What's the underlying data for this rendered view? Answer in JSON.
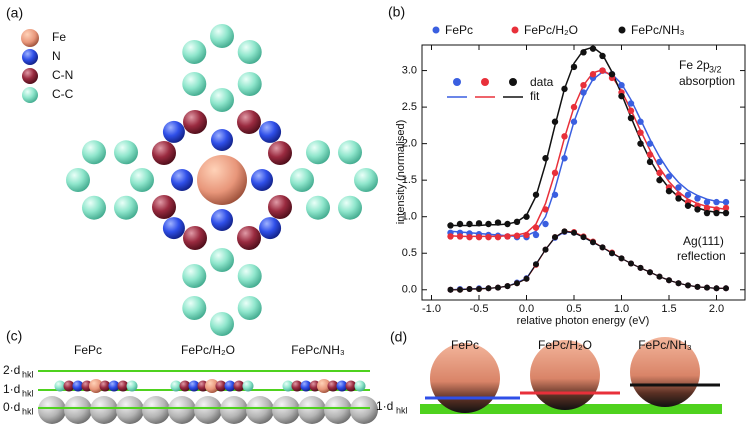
{
  "panel_a": {
    "label": "(a)",
    "legend": [
      "Fe",
      "N",
      "C-N",
      "C-C"
    ]
  },
  "chart_data": {
    "type": "scatter",
    "panel_label": "(b)",
    "xlabel": "relative photon energy (eV)",
    "ylabel": "intensity (normalised)",
    "xlim": [
      -1.1,
      2.3
    ],
    "ylim": [
      -0.14,
      3.35
    ],
    "xticks": [
      {
        "value": -1,
        "label": "-1.0"
      },
      {
        "value": -0.5,
        "label": "-0.5"
      },
      {
        "value": 0,
        "label": "0.0"
      },
      {
        "value": 0.5,
        "label": "0.5"
      },
      {
        "value": 1,
        "label": "1.0"
      },
      {
        "value": 1.5,
        "label": "1.5"
      },
      {
        "value": 2,
        "label": "2.0"
      }
    ],
    "yticks": [
      {
        "value": 0,
        "label": "0.0"
      },
      0.5,
      {
        "value": 1,
        "label": "1.0"
      },
      1.5,
      {
        "value": 2,
        "label": "2.0"
      },
      2.5,
      {
        "value": 3,
        "label": "3.0"
      }
    ],
    "inset_labels": [
      "data",
      "fit"
    ],
    "annotations": [
      "Fe 2p",
      "3/2",
      "absorption",
      "Ag(111)",
      "reflection"
    ],
    "x": [
      -0.8,
      -0.7,
      -0.6,
      -0.5,
      -0.4,
      -0.3,
      -0.2,
      -0.1,
      0.0,
      0.1,
      0.2,
      0.3,
      0.4,
      0.5,
      0.6,
      0.7,
      0.8,
      0.9,
      1.0,
      1.1,
      1.2,
      1.3,
      1.4,
      1.5,
      1.6,
      1.7,
      1.8,
      1.9,
      2.0,
      2.1
    ],
    "series": [
      {
        "name": "FePc",
        "color": "#3a5fe0",
        "values": [
          0.78,
          0.78,
          0.77,
          0.76,
          0.75,
          0.74,
          0.73,
          0.72,
          0.72,
          0.75,
          0.9,
          1.3,
          1.8,
          2.3,
          2.7,
          2.9,
          3.0,
          2.95,
          2.8,
          2.55,
          2.3,
          2.0,
          1.75,
          1.55,
          1.4,
          1.3,
          1.25,
          1.2,
          1.2,
          1.2
        ],
        "fit": [
          0.8,
          0.79,
          0.78,
          0.77,
          0.76,
          0.75,
          0.74,
          0.73,
          0.74,
          0.8,
          1.0,
          1.38,
          1.85,
          2.3,
          2.65,
          2.88,
          2.98,
          2.95,
          2.82,
          2.6,
          2.33,
          2.06,
          1.82,
          1.62,
          1.47,
          1.36,
          1.29,
          1.24,
          1.21,
          1.19
        ],
        "reflection": [
          0.0,
          0.01,
          0.01,
          0.02,
          0.02,
          0.03,
          0.05,
          0.1,
          0.16,
          0.35,
          0.55,
          0.71,
          0.79,
          0.78,
          0.72,
          0.65,
          0.58,
          0.5,
          0.43,
          0.36,
          0.3,
          0.24,
          0.18,
          0.13,
          0.09,
          0.06,
          0.04,
          0.03,
          0.02,
          0.02
        ]
      },
      {
        "name": "FePc/H₂O",
        "color": "#e8303a",
        "values": [
          0.73,
          0.73,
          0.72,
          0.72,
          0.72,
          0.72,
          0.73,
          0.74,
          0.75,
          0.85,
          1.1,
          1.6,
          2.1,
          2.5,
          2.8,
          2.95,
          3.0,
          2.9,
          2.7,
          2.45,
          2.15,
          1.85,
          1.6,
          1.4,
          1.3,
          1.2,
          1.15,
          1.12,
          1.1,
          1.12
        ],
        "fit": [
          0.74,
          0.73,
          0.73,
          0.73,
          0.73,
          0.73,
          0.74,
          0.75,
          0.78,
          0.9,
          1.18,
          1.6,
          2.08,
          2.5,
          2.8,
          2.97,
          3.01,
          2.92,
          2.72,
          2.46,
          2.18,
          1.91,
          1.67,
          1.48,
          1.34,
          1.24,
          1.18,
          1.14,
          1.12,
          1.1
        ],
        "reflection": [
          0.0,
          0.0,
          0.01,
          0.01,
          0.02,
          0.03,
          0.05,
          0.09,
          0.15,
          0.34,
          0.55,
          0.72,
          0.8,
          0.79,
          0.73,
          0.66,
          0.58,
          0.51,
          0.43,
          0.36,
          0.3,
          0.24,
          0.18,
          0.13,
          0.09,
          0.06,
          0.04,
          0.03,
          0.02,
          0.02
        ]
      },
      {
        "name": "FePc/NH₃",
        "color": "#111111",
        "values": [
          0.88,
          0.9,
          0.9,
          0.91,
          0.9,
          0.92,
          0.9,
          0.93,
          1.0,
          1.3,
          1.8,
          2.3,
          2.75,
          3.05,
          3.25,
          3.3,
          3.2,
          2.95,
          2.65,
          2.35,
          2.0,
          1.75,
          1.5,
          1.35,
          1.25,
          1.15,
          1.1,
          1.05,
          1.05,
          1.05
        ],
        "fit": [
          0.88,
          0.88,
          0.88,
          0.88,
          0.89,
          0.89,
          0.9,
          0.93,
          1.02,
          1.28,
          1.72,
          2.25,
          2.75,
          3.1,
          3.28,
          3.32,
          3.22,
          2.98,
          2.68,
          2.36,
          2.05,
          1.78,
          1.56,
          1.39,
          1.27,
          1.18,
          1.12,
          1.08,
          1.06,
          1.05
        ],
        "reflection": [
          0.0,
          0.0,
          0.01,
          0.01,
          0.02,
          0.03,
          0.05,
          0.09,
          0.15,
          0.35,
          0.55,
          0.72,
          0.8,
          0.78,
          0.72,
          0.65,
          0.58,
          0.5,
          0.43,
          0.36,
          0.3,
          0.24,
          0.18,
          0.13,
          0.09,
          0.06,
          0.04,
          0.03,
          0.02,
          0.02
        ]
      }
    ]
  },
  "panel_c": {
    "label": "(c)",
    "molecules": [
      "FePc",
      "FePc/H₂O",
      "FePc/NH₃"
    ],
    "levels": [
      {
        "text": "2·d",
        "subscript": "hkl"
      },
      {
        "text": "1·d",
        "subscript": "hkl"
      },
      {
        "text": "0·d",
        "subscript": "hkl"
      }
    ]
  },
  "panel_d": {
    "label": "(d)",
    "molecules": [
      "FePc",
      "FePc/H₂O",
      "FePc/NH₃"
    ],
    "level": {
      "text": "1·d",
      "subscript": "hkl"
    }
  }
}
